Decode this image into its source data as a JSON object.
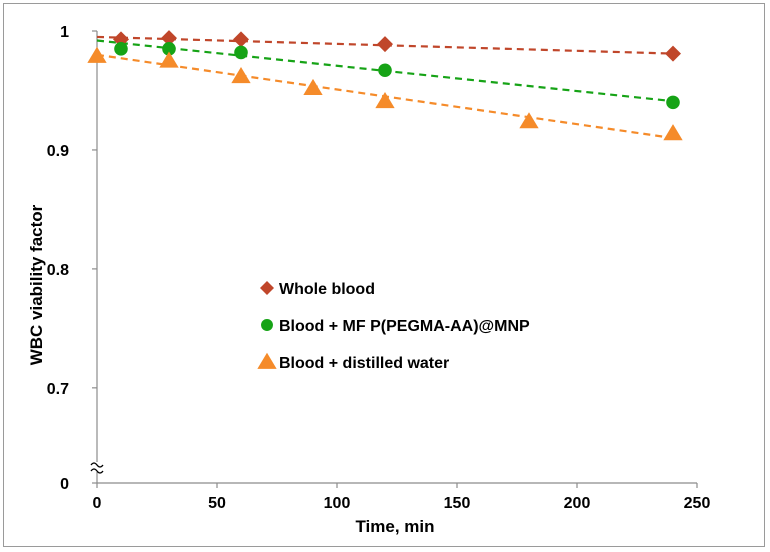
{
  "chart_data": {
    "type": "scatter",
    "title": "",
    "xlabel": "Time, min",
    "ylabel": "WBC viability factor",
    "xlim": [
      0,
      250
    ],
    "ylim": [
      0.62,
      1.0
    ],
    "y_axis_break": true,
    "x_ticks": [
      0,
      50,
      100,
      150,
      200,
      250
    ],
    "y_ticks": [
      {
        "value": 0.62,
        "label": "0"
      },
      {
        "value": 0.7,
        "label": "0.7"
      },
      {
        "value": 0.8,
        "label": "0.8"
      },
      {
        "value": 0.9,
        "label": "0.9"
      },
      {
        "value": 1.0,
        "label": "1"
      }
    ],
    "legend_position": "center-left",
    "series": [
      {
        "name": "Whole blood",
        "marker": "diamond",
        "color": "#c0462a",
        "x": [
          10,
          30,
          60,
          120,
          240
        ],
        "y": [
          0.993,
          0.994,
          0.993,
          0.989,
          0.981
        ],
        "trend": {
          "x": [
            0,
            240
          ],
          "y": [
            0.995,
            0.981
          ]
        }
      },
      {
        "name": "Blood + MF P(PEGMA-AA)@MNP",
        "marker": "circle",
        "color": "#16a316",
        "x": [
          10,
          30,
          60,
          120,
          240
        ],
        "y": [
          0.985,
          0.985,
          0.982,
          0.967,
          0.94
        ],
        "trend": {
          "x": [
            0,
            240
          ],
          "y": [
            0.992,
            0.941
          ]
        }
      },
      {
        "name": "Blood + distilled water",
        "marker": "triangle",
        "color": "#f58b2a",
        "x": [
          0,
          30,
          60,
          90,
          120,
          180,
          240
        ],
        "y": [
          0.979,
          0.975,
          0.962,
          0.952,
          0.941,
          0.924,
          0.914
        ],
        "trend": {
          "x": [
            0,
            240
          ],
          "y": [
            0.98,
            0.91
          ]
        }
      }
    ]
  }
}
